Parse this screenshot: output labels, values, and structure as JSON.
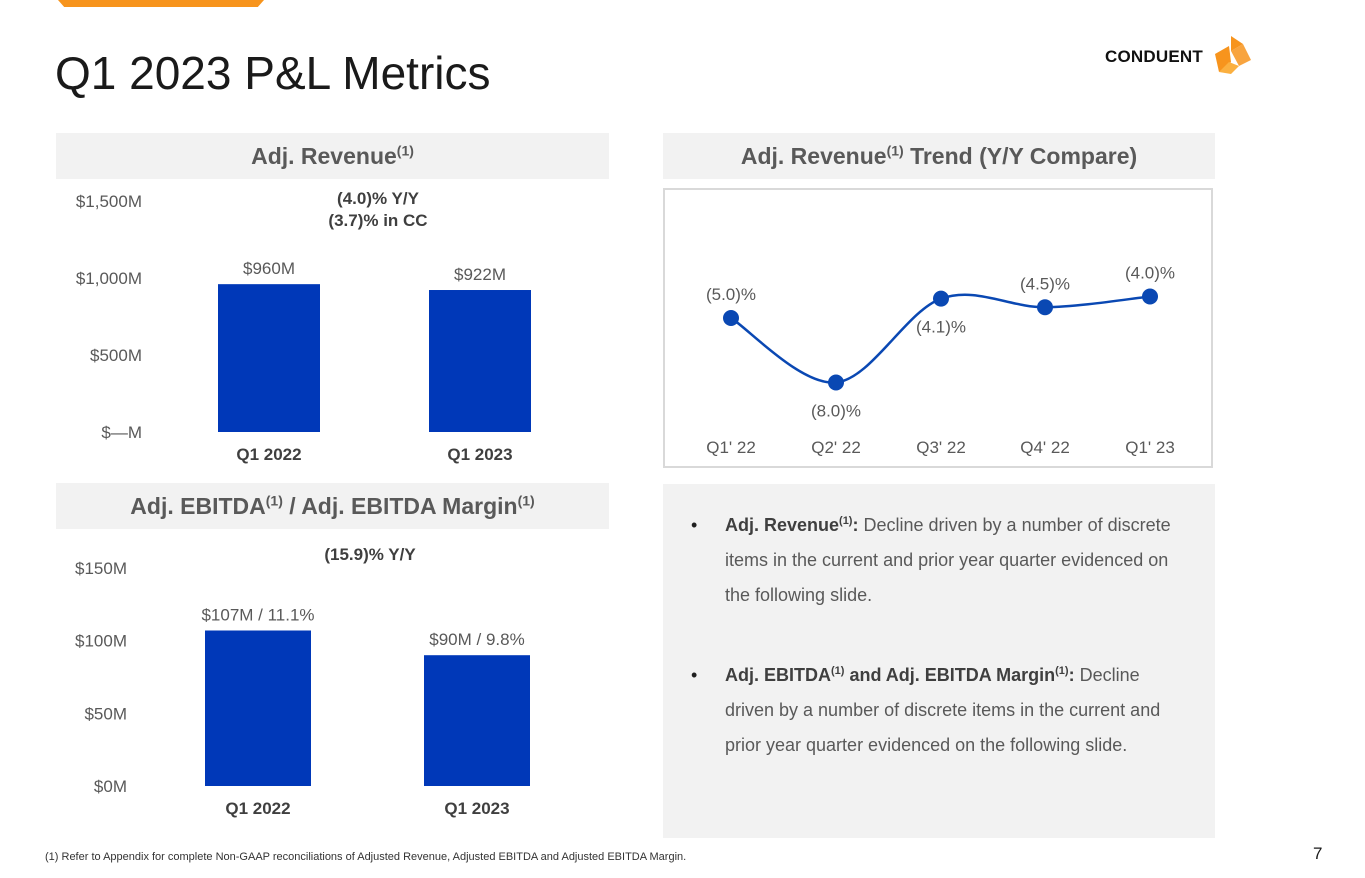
{
  "page": {
    "title": "Q1 2023 P&L Metrics",
    "page_number": "7",
    "footnote": "(1) Refer to Appendix for complete Non-GAAP reconciliations of Adjusted Revenue, Adjusted EBITDA and Adjusted EBITDA Margin.",
    "logo_text": "CONDUENT"
  },
  "colors": {
    "bar": "#0038b8",
    "accent": "#f7941d",
    "line": "#0a48b3"
  },
  "headers": {
    "revenue": {
      "label": "Adj. Revenue",
      "sup": "(1)"
    },
    "ebitda": {
      "label1": "Adj. EBITDA",
      "sup1": "(1)",
      "label2": " / Adj. EBITDA Margin",
      "sup2": "(1)"
    },
    "trend": {
      "label1": "Adj. Revenue",
      "sup1": "(1)",
      "label2": " Trend (Y/Y Compare)"
    }
  },
  "chart_data": [
    {
      "type": "bar",
      "title": "Adj. Revenue(1)",
      "annotation": [
        "(4.0)% Y/Y",
        "(3.7)% in CC"
      ],
      "categories": [
        "Q1 2022",
        "Q1 2023"
      ],
      "values": [
        960,
        922
      ],
      "data_labels": [
        "$960M",
        "$922M"
      ],
      "y_ticks": [
        0,
        500,
        1000,
        1500
      ],
      "y_tick_labels": [
        "$—M",
        "$500M",
        "$1,000M",
        "$1,500M"
      ],
      "ylim": [
        0,
        1500
      ],
      "unit": "$M"
    },
    {
      "type": "bar",
      "title": "Adj. EBITDA(1) / Adj. EBITDA Margin(1)",
      "annotation": [
        "(15.9)% Y/Y"
      ],
      "categories": [
        "Q1 2022",
        "Q1 2023"
      ],
      "values": [
        107,
        90
      ],
      "margins": [
        11.1,
        9.8
      ],
      "data_labels": [
        "$107M / 11.1%",
        "$90M / 9.8%"
      ],
      "y_ticks": [
        0,
        50,
        100,
        150
      ],
      "y_tick_labels": [
        "$0M",
        "$50M",
        "$100M",
        "$150M"
      ],
      "ylim": [
        0,
        150
      ],
      "unit": "$M"
    },
    {
      "type": "line",
      "title": "Adj. Revenue(1) Trend (Y/Y Compare)",
      "categories": [
        "Q1' 22",
        "Q2' 22",
        "Q3' 22",
        "Q4' 22",
        "Q1' 23"
      ],
      "values": [
        -5.0,
        -8.0,
        -4.1,
        -4.5,
        -4.0
      ],
      "data_labels": [
        "(5.0)%",
        "(8.0)%",
        "(4.1)%",
        "(4.5)%",
        "(4.0)%"
      ],
      "label_positions": [
        "above",
        "below",
        "below",
        "above",
        "above"
      ],
      "ylim": [
        -9,
        -3
      ],
      "unit": "%"
    }
  ],
  "notes": {
    "bullet1": {
      "bold": "Adj. Revenue",
      "sup": "(1)",
      "colon": ":",
      "text": " Decline driven by a number of discrete items in the current and prior year quarter evidenced on the following slide."
    },
    "bullet2": {
      "bold1": "Adj. EBITDA",
      "sup1": "(1)",
      "bold2": " and Adj. EBITDA Margin",
      "sup2": "(1)",
      "colon": ":",
      "text": " Decline driven by a number of discrete items in the current and prior year quarter evidenced on the following slide."
    },
    "bullet_char": "•"
  }
}
